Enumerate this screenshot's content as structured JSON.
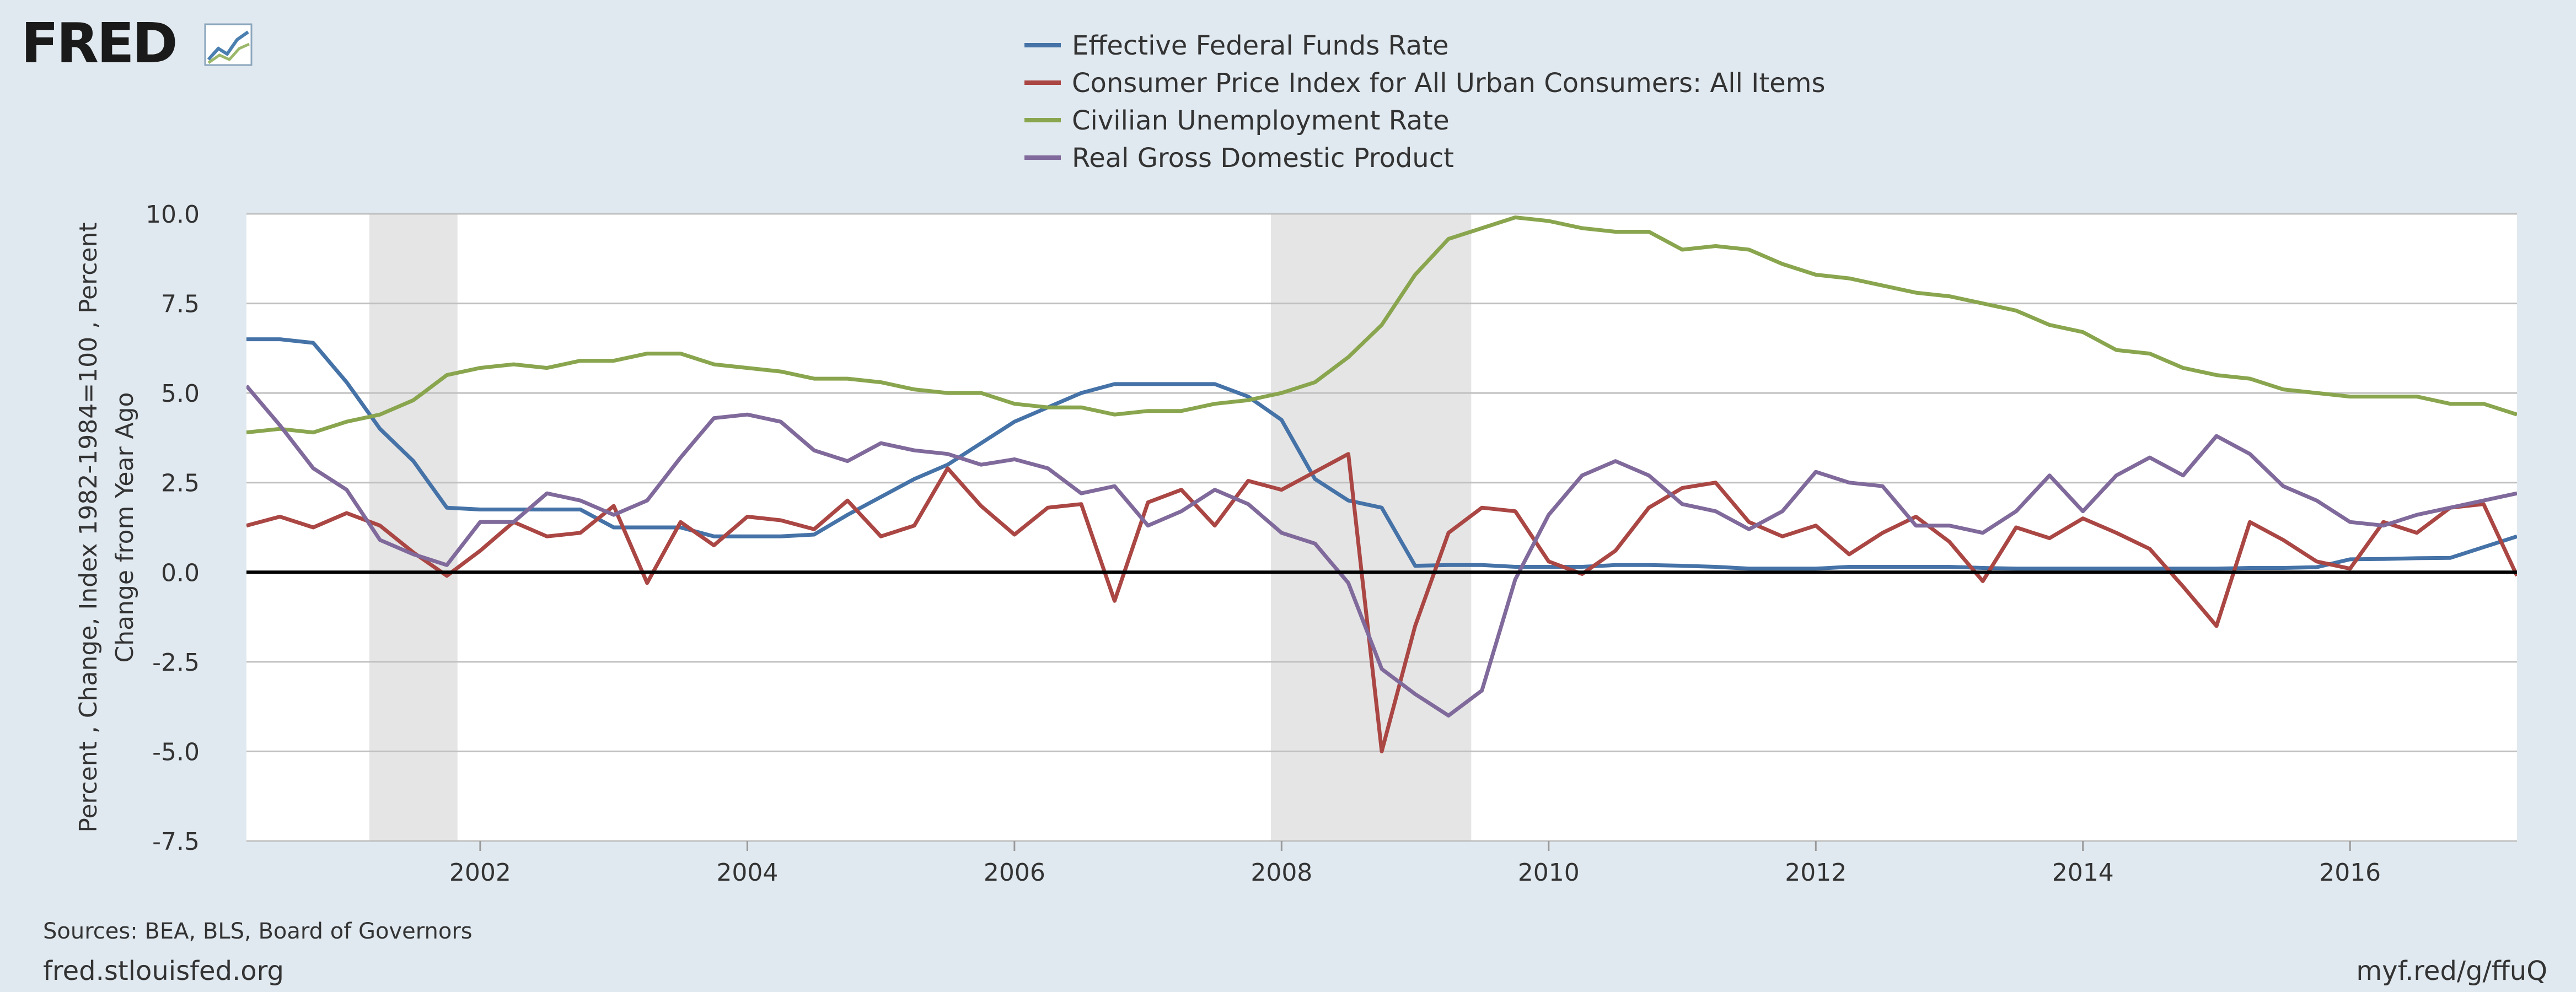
{
  "brand": {
    "logo_text": "FRED"
  },
  "footer": {
    "sources": "Sources: BEA, BLS, Board of Governors",
    "site": "fred.stlouisfed.org",
    "short_url": "myf.red/g/ffuQ"
  },
  "colors": {
    "background": "#e1e9f0",
    "plot_background": "#ffffff",
    "recession": "#e5e5e5",
    "grid": "#c0c0c0",
    "zero_line": "#000000",
    "text": "#333333"
  },
  "chart_data": {
    "type": "line",
    "title": "",
    "ylabel_lines": [
      "Percent , Change, Index 1982-1984=100 , Percent",
      "Change from Year Ago"
    ],
    "xlim": [
      2000.25,
      2017.25
    ],
    "ylim": [
      -7.5,
      10
    ],
    "y_ticks": [
      "10.0",
      "7.5",
      "5.0",
      "2.5",
      "0.0",
      "-2.5",
      "-5.0",
      "-7.5"
    ],
    "x_ticks": [
      "2002",
      "2004",
      "2006",
      "2008",
      "2010",
      "2012",
      "2014",
      "2016"
    ],
    "grid": true,
    "legend_position": "top-center",
    "recessions": [
      [
        2001.17,
        2001.83
      ],
      [
        2007.92,
        2009.42
      ]
    ],
    "series": [
      {
        "name": "Effective Federal Funds Rate",
        "color": "#4572a7",
        "points": [
          [
            2000.25,
            6.5
          ],
          [
            2000.5,
            6.5
          ],
          [
            2000.75,
            6.4
          ],
          [
            2001.0,
            5.3
          ],
          [
            2001.25,
            4.0
          ],
          [
            2001.5,
            3.1
          ],
          [
            2001.75,
            1.8
          ],
          [
            2002.0,
            1.75
          ],
          [
            2002.25,
            1.75
          ],
          [
            2002.5,
            1.75
          ],
          [
            2002.75,
            1.75
          ],
          [
            2003.0,
            1.25
          ],
          [
            2003.25,
            1.25
          ],
          [
            2003.5,
            1.25
          ],
          [
            2003.75,
            1.0
          ],
          [
            2004.0,
            1.0
          ],
          [
            2004.25,
            1.0
          ],
          [
            2004.5,
            1.05
          ],
          [
            2004.75,
            1.6
          ],
          [
            2005.0,
            2.1
          ],
          [
            2005.25,
            2.6
          ],
          [
            2005.5,
            3.0
          ],
          [
            2005.75,
            3.6
          ],
          [
            2006.0,
            4.2
          ],
          [
            2006.25,
            4.6
          ],
          [
            2006.5,
            5.0
          ],
          [
            2006.75,
            5.25
          ],
          [
            2007.0,
            5.25
          ],
          [
            2007.25,
            5.25
          ],
          [
            2007.5,
            5.25
          ],
          [
            2007.75,
            4.9
          ],
          [
            2008.0,
            4.25
          ],
          [
            2008.25,
            2.6
          ],
          [
            2008.5,
            2.0
          ],
          [
            2008.75,
            1.8
          ],
          [
            2009.0,
            0.18
          ],
          [
            2009.25,
            0.2
          ],
          [
            2009.5,
            0.2
          ],
          [
            2009.75,
            0.15
          ],
          [
            2010.0,
            0.15
          ],
          [
            2010.25,
            0.15
          ],
          [
            2010.5,
            0.2
          ],
          [
            2010.75,
            0.2
          ],
          [
            2011.0,
            0.18
          ],
          [
            2011.25,
            0.15
          ],
          [
            2011.5,
            0.1
          ],
          [
            2011.75,
            0.1
          ],
          [
            2012.0,
            0.1
          ],
          [
            2012.25,
            0.15
          ],
          [
            2012.5,
            0.15
          ],
          [
            2012.75,
            0.15
          ],
          [
            2013.0,
            0.15
          ],
          [
            2013.25,
            0.12
          ],
          [
            2013.5,
            0.1
          ],
          [
            2013.75,
            0.1
          ],
          [
            2014.0,
            0.1
          ],
          [
            2014.25,
            0.1
          ],
          [
            2014.5,
            0.1
          ],
          [
            2014.75,
            0.1
          ],
          [
            2015.0,
            0.1
          ],
          [
            2015.25,
            0.12
          ],
          [
            2015.5,
            0.12
          ],
          [
            2015.75,
            0.14
          ],
          [
            2016.0,
            0.36
          ],
          [
            2016.25,
            0.37
          ],
          [
            2016.5,
            0.39
          ],
          [
            2016.75,
            0.4
          ],
          [
            2017.0,
            0.7
          ],
          [
            2017.25,
            1.0
          ]
        ]
      },
      {
        "name": "Consumer Price Index for All Urban Consumers: All Items",
        "color": "#aa4643",
        "points": [
          [
            2000.25,
            1.3
          ],
          [
            2000.5,
            1.55
          ],
          [
            2000.75,
            1.25
          ],
          [
            2001.0,
            1.65
          ],
          [
            2001.25,
            1.3
          ],
          [
            2001.5,
            0.55
          ],
          [
            2001.75,
            -0.1
          ],
          [
            2002.0,
            0.6
          ],
          [
            2002.25,
            1.4
          ],
          [
            2002.5,
            1.0
          ],
          [
            2002.75,
            1.1
          ],
          [
            2003.0,
            1.85
          ],
          [
            2003.25,
            -0.3
          ],
          [
            2003.5,
            1.4
          ],
          [
            2003.75,
            0.75
          ],
          [
            2004.0,
            1.55
          ],
          [
            2004.25,
            1.45
          ],
          [
            2004.5,
            1.2
          ],
          [
            2004.75,
            2.0
          ],
          [
            2005.0,
            1.0
          ],
          [
            2005.25,
            1.3
          ],
          [
            2005.5,
            2.9
          ],
          [
            2005.75,
            1.85
          ],
          [
            2006.0,
            1.05
          ],
          [
            2006.25,
            1.8
          ],
          [
            2006.5,
            1.9
          ],
          [
            2006.75,
            -0.8
          ],
          [
            2007.0,
            1.95
          ],
          [
            2007.25,
            2.3
          ],
          [
            2007.5,
            1.3
          ],
          [
            2007.75,
            2.55
          ],
          [
            2008.0,
            2.3
          ],
          [
            2008.25,
            2.8
          ],
          [
            2008.5,
            3.3
          ],
          [
            2008.75,
            -5.0
          ],
          [
            2009.0,
            -1.5
          ],
          [
            2009.25,
            1.1
          ],
          [
            2009.5,
            1.8
          ],
          [
            2009.75,
            1.7
          ],
          [
            2010.0,
            0.3
          ],
          [
            2010.25,
            -0.05
          ],
          [
            2010.5,
            0.6
          ],
          [
            2010.75,
            1.8
          ],
          [
            2011.0,
            2.35
          ],
          [
            2011.25,
            2.5
          ],
          [
            2011.5,
            1.4
          ],
          [
            2011.75,
            1.0
          ],
          [
            2012.0,
            1.3
          ],
          [
            2012.25,
            0.5
          ],
          [
            2012.5,
            1.1
          ],
          [
            2012.75,
            1.55
          ],
          [
            2013.0,
            0.85
          ],
          [
            2013.25,
            -0.25
          ],
          [
            2013.5,
            1.25
          ],
          [
            2013.75,
            0.95
          ],
          [
            2014.0,
            1.5
          ],
          [
            2014.25,
            1.1
          ],
          [
            2014.5,
            0.65
          ],
          [
            2014.75,
            -0.4
          ],
          [
            2015.0,
            -1.5
          ],
          [
            2015.25,
            1.4
          ],
          [
            2015.5,
            0.9
          ],
          [
            2015.75,
            0.3
          ],
          [
            2016.0,
            0.1
          ],
          [
            2016.25,
            1.4
          ],
          [
            2016.5,
            1.1
          ],
          [
            2016.75,
            1.8
          ],
          [
            2017.0,
            1.9
          ],
          [
            2017.25,
            -0.1
          ]
        ]
      },
      {
        "name": "Civilian Unemployment Rate",
        "color": "#89a54e",
        "points": [
          [
            2000.25,
            3.9
          ],
          [
            2000.5,
            4.0
          ],
          [
            2000.75,
            3.9
          ],
          [
            2001.0,
            4.2
          ],
          [
            2001.25,
            4.4
          ],
          [
            2001.5,
            4.8
          ],
          [
            2001.75,
            5.5
          ],
          [
            2002.0,
            5.7
          ],
          [
            2002.25,
            5.8
          ],
          [
            2002.5,
            5.7
          ],
          [
            2002.75,
            5.9
          ],
          [
            2003.0,
            5.9
          ],
          [
            2003.25,
            6.1
          ],
          [
            2003.5,
            6.1
          ],
          [
            2003.75,
            5.8
          ],
          [
            2004.0,
            5.7
          ],
          [
            2004.25,
            5.6
          ],
          [
            2004.5,
            5.4
          ],
          [
            2004.75,
            5.4
          ],
          [
            2005.0,
            5.3
          ],
          [
            2005.25,
            5.1
          ],
          [
            2005.5,
            5.0
          ],
          [
            2005.75,
            5.0
          ],
          [
            2006.0,
            4.7
          ],
          [
            2006.25,
            4.6
          ],
          [
            2006.5,
            4.6
          ],
          [
            2006.75,
            4.4
          ],
          [
            2007.0,
            4.5
          ],
          [
            2007.25,
            4.5
          ],
          [
            2007.5,
            4.7
          ],
          [
            2007.75,
            4.8
          ],
          [
            2008.0,
            5.0
          ],
          [
            2008.25,
            5.3
          ],
          [
            2008.5,
            6.0
          ],
          [
            2008.75,
            6.9
          ],
          [
            2009.0,
            8.3
          ],
          [
            2009.25,
            9.3
          ],
          [
            2009.5,
            9.6
          ],
          [
            2009.75,
            9.9
          ],
          [
            2010.0,
            9.8
          ],
          [
            2010.25,
            9.6
          ],
          [
            2010.5,
            9.5
          ],
          [
            2010.75,
            9.5
          ],
          [
            2011.0,
            9.0
          ],
          [
            2011.25,
            9.1
          ],
          [
            2011.5,
            9.0
          ],
          [
            2011.75,
            8.6
          ],
          [
            2012.0,
            8.3
          ],
          [
            2012.25,
            8.2
          ],
          [
            2012.5,
            8.0
          ],
          [
            2012.75,
            7.8
          ],
          [
            2013.0,
            7.7
          ],
          [
            2013.25,
            7.5
          ],
          [
            2013.5,
            7.3
          ],
          [
            2013.75,
            6.9
          ],
          [
            2014.0,
            6.7
          ],
          [
            2014.25,
            6.2
          ],
          [
            2014.5,
            6.1
          ],
          [
            2014.75,
            5.7
          ],
          [
            2015.0,
            5.5
          ],
          [
            2015.25,
            5.4
          ],
          [
            2015.5,
            5.1
          ],
          [
            2015.75,
            5.0
          ],
          [
            2016.0,
            4.9
          ],
          [
            2016.25,
            4.9
          ],
          [
            2016.5,
            4.9
          ],
          [
            2016.75,
            4.7
          ],
          [
            2017.0,
            4.7
          ],
          [
            2017.25,
            4.4
          ]
        ]
      },
      {
        "name": "Real Gross Domestic Product",
        "color": "#80699b",
        "points": [
          [
            2000.25,
            5.2
          ],
          [
            2000.5,
            4.1
          ],
          [
            2000.75,
            2.9
          ],
          [
            2001.0,
            2.3
          ],
          [
            2001.25,
            0.9
          ],
          [
            2001.5,
            0.5
          ],
          [
            2001.75,
            0.2
          ],
          [
            2002.0,
            1.4
          ],
          [
            2002.25,
            1.4
          ],
          [
            2002.5,
            2.2
          ],
          [
            2002.75,
            2.0
          ],
          [
            2003.0,
            1.6
          ],
          [
            2003.25,
            2.0
          ],
          [
            2003.5,
            3.2
          ],
          [
            2003.75,
            4.3
          ],
          [
            2004.0,
            4.4
          ],
          [
            2004.25,
            4.2
          ],
          [
            2004.5,
            3.4
          ],
          [
            2004.75,
            3.1
          ],
          [
            2005.0,
            3.6
          ],
          [
            2005.25,
            3.4
          ],
          [
            2005.5,
            3.3
          ],
          [
            2005.75,
            3.0
          ],
          [
            2006.0,
            3.15
          ],
          [
            2006.25,
            2.9
          ],
          [
            2006.5,
            2.2
          ],
          [
            2006.75,
            2.4
          ],
          [
            2007.0,
            1.3
          ],
          [
            2007.25,
            1.7
          ],
          [
            2007.5,
            2.3
          ],
          [
            2007.75,
            1.9
          ],
          [
            2008.0,
            1.1
          ],
          [
            2008.25,
            0.8
          ],
          [
            2008.5,
            -0.3
          ],
          [
            2008.75,
            -2.7
          ],
          [
            2009.0,
            -3.4
          ],
          [
            2009.25,
            -4.0
          ],
          [
            2009.5,
            -3.3
          ],
          [
            2009.75,
            -0.2
          ],
          [
            2010.0,
            1.6
          ],
          [
            2010.25,
            2.7
          ],
          [
            2010.5,
            3.1
          ],
          [
            2010.75,
            2.7
          ],
          [
            2011.0,
            1.9
          ],
          [
            2011.25,
            1.7
          ],
          [
            2011.5,
            1.2
          ],
          [
            2011.75,
            1.7
          ],
          [
            2012.0,
            2.8
          ],
          [
            2012.25,
            2.5
          ],
          [
            2012.5,
            2.4
          ],
          [
            2012.75,
            1.3
          ],
          [
            2013.0,
            1.3
          ],
          [
            2013.25,
            1.1
          ],
          [
            2013.5,
            1.7
          ],
          [
            2013.75,
            2.7
          ],
          [
            2014.0,
            1.7
          ],
          [
            2014.25,
            2.7
          ],
          [
            2014.5,
            3.2
          ],
          [
            2014.75,
            2.7
          ],
          [
            2015.0,
            3.8
          ],
          [
            2015.25,
            3.3
          ],
          [
            2015.5,
            2.4
          ],
          [
            2015.75,
            2.0
          ],
          [
            2016.0,
            1.4
          ],
          [
            2016.25,
            1.3
          ],
          [
            2016.5,
            1.6
          ],
          [
            2016.75,
            1.8
          ],
          [
            2017.0,
            2.0
          ],
          [
            2017.25,
            2.2
          ]
        ]
      }
    ]
  }
}
